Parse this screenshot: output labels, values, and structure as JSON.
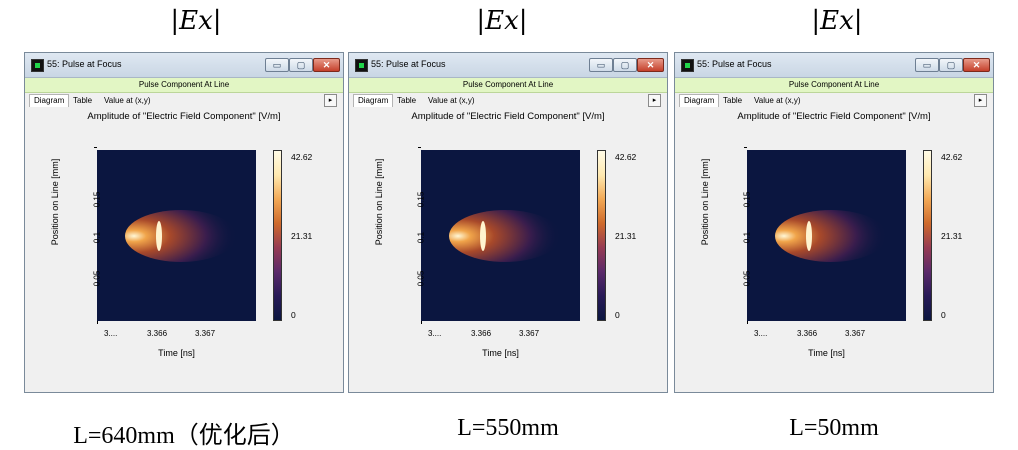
{
  "headers": [
    {
      "text": "|Ex|"
    },
    {
      "text": "|Ex|"
    },
    {
      "text": "|Ex|"
    }
  ],
  "captions": [
    "L=640mm（优化后）",
    "L=550mm",
    "L=50mm"
  ],
  "windows": [
    {
      "title": "55: Pulse at Focus",
      "window_buttons": {
        "minimize": "▭",
        "maximize": "▢",
        "close": "✕"
      },
      "subtitle": "Pulse Component At Line",
      "tabs": [
        "Diagram",
        "Table",
        "Value at (x,y)"
      ],
      "tab_arrow": "▸",
      "plot_title": "Amplitude of \"Electric Field Component\"  [V/m]",
      "ylabel": "Position on Line [mm]",
      "xlabel": "Time [ns]",
      "yticks": [
        "0.15",
        "0.1",
        "0.05"
      ],
      "xticks": [
        "3....",
        "3.366",
        "3.367"
      ],
      "colorbar": {
        "max": "42.62",
        "mid": "21.31",
        "min": "0"
      },
      "colors": {
        "title_bg": "#dfe8f2",
        "subtitle_bg": "#e2f6c4",
        "plot_bg": "#0b1640",
        "close_button": "#c5402b"
      }
    },
    {
      "title": "55: Pulse at Focus",
      "window_buttons": {
        "minimize": "▭",
        "maximize": "▢",
        "close": "✕"
      },
      "subtitle": "Pulse Component At Line",
      "tabs": [
        "Diagram",
        "Table",
        "Value at (x,y)"
      ],
      "tab_arrow": "▸",
      "plot_title": "Amplitude of \"Electric Field Component\"  [V/m]",
      "ylabel": "Position on Line [mm]",
      "xlabel": "Time [ns]",
      "yticks": [
        "0.15",
        "0.1",
        "0.05"
      ],
      "xticks": [
        "3....",
        "3.366",
        "3.367"
      ],
      "colorbar": {
        "max": "42.62",
        "mid": "21.31",
        "min": "0"
      },
      "colors": {
        "title_bg": "#dfe8f2",
        "subtitle_bg": "#e2f6c4",
        "plot_bg": "#0b1640",
        "close_button": "#c5402b"
      }
    },
    {
      "title": "55: Pulse at Focus",
      "window_buttons": {
        "minimize": "▭",
        "maximize": "▢",
        "close": "✕"
      },
      "subtitle": "Pulse Component At Line",
      "tabs": [
        "Diagram",
        "Table",
        "Value at (x,y)"
      ],
      "tab_arrow": "▸",
      "plot_title": "Amplitude of \"Electric Field Component\"  [V/m]",
      "ylabel": "Position on Line [mm]",
      "xlabel": "Time [ns]",
      "yticks": [
        "0.15",
        "0.1",
        "0.05"
      ],
      "xticks": [
        "3....",
        "3.366",
        "3.367"
      ],
      "colorbar": {
        "max": "42.62",
        "mid": "21.31",
        "min": "0"
      },
      "colors": {
        "title_bg": "#dfe8f2",
        "subtitle_bg": "#e2f6c4",
        "plot_bg": "#0b1640",
        "close_button": "#c5402b"
      }
    }
  ]
}
